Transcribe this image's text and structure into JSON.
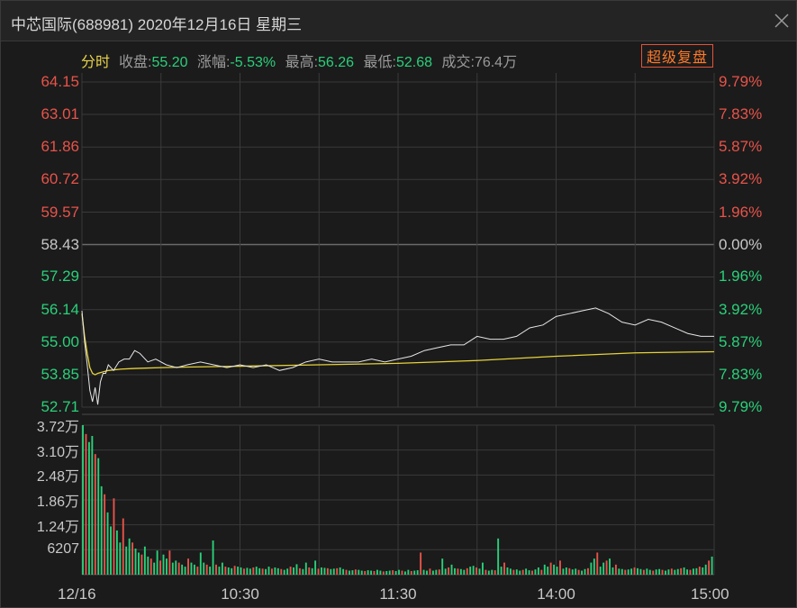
{
  "window": {
    "title": "中芯国际(688981) 2020年12月16日 星期三",
    "close_icon": "close-icon"
  },
  "info": {
    "mode": "分时",
    "close_label": "收盘:",
    "close_value": "55.20",
    "change_label": "涨幅:",
    "change_value": "-5.53%",
    "high_label": "最高:",
    "high_value": "56.26",
    "low_label": "最低:",
    "low_value": "52.68",
    "volume_label": "成交:",
    "volume_value": "76.4万"
  },
  "replay_button": "超级复盘",
  "colors": {
    "up": "#e8534a",
    "down": "#2ad07a",
    "flat": "#c8c8c8",
    "price_line": "#e6e6e6",
    "avg_line": "#e6d23a",
    "grid": "#3a3a3a"
  },
  "chart_data": {
    "type": "line",
    "symbol": "688981",
    "prev_close": 58.43,
    "price_axis": {
      "labels": [
        "64.15",
        "63.01",
        "61.86",
        "60.72",
        "59.57",
        "58.43",
        "57.29",
        "56.14",
        "55.00",
        "53.85",
        "52.71"
      ],
      "values": [
        64.15,
        63.01,
        61.86,
        60.72,
        59.57,
        58.43,
        57.29,
        56.14,
        55.0,
        53.85,
        52.71
      ],
      "ylim": [
        52.71,
        64.15
      ]
    },
    "pct_axis": {
      "labels": [
        "9.79%",
        "7.83%",
        "5.87%",
        "3.92%",
        "1.96%",
        "0.00%",
        "1.96%",
        "3.92%",
        "5.87%",
        "7.83%",
        "9.79%"
      ]
    },
    "volume_axis": {
      "labels": [
        "3.72万",
        "3.10万",
        "2.48万",
        "1.86万",
        "1.24万",
        "6207"
      ],
      "values": [
        37200,
        31000,
        24800,
        18600,
        12400,
        6207
      ],
      "ylim": [
        0,
        37200
      ]
    },
    "time_axis": {
      "labels": [
        "12/16",
        "10:30",
        "11:30",
        "14:00",
        "15:00"
      ],
      "minutes": [
        0,
        60,
        120,
        180,
        240
      ]
    },
    "grid": true,
    "price_series": {
      "name": "price",
      "minutes": [
        0,
        1,
        2,
        3,
        4,
        5,
        6,
        7,
        8,
        9,
        10,
        12,
        14,
        16,
        18,
        20,
        22,
        25,
        28,
        32,
        36,
        40,
        45,
        50,
        55,
        60,
        65,
        70,
        75,
        80,
        85,
        90,
        95,
        100,
        105,
        110,
        115,
        120,
        125,
        130,
        135,
        140,
        145,
        150,
        155,
        160,
        165,
        170,
        175,
        180,
        185,
        190,
        195,
        200,
        205,
        210,
        215,
        220,
        225,
        230,
        235,
        240
      ],
      "values": [
        56.1,
        55.0,
        54.2,
        53.3,
        52.9,
        53.4,
        52.8,
        53.6,
        53.9,
        53.9,
        54.2,
        54.0,
        54.3,
        54.4,
        54.4,
        54.7,
        54.6,
        54.3,
        54.4,
        54.2,
        54.1,
        54.2,
        54.3,
        54.2,
        54.1,
        54.2,
        54.1,
        54.2,
        54.0,
        54.1,
        54.3,
        54.4,
        54.3,
        54.3,
        54.3,
        54.4,
        54.3,
        54.4,
        54.5,
        54.7,
        54.8,
        54.9,
        54.9,
        55.2,
        55.1,
        55.1,
        55.2,
        55.5,
        55.6,
        55.9,
        56.0,
        56.1,
        56.2,
        56.0,
        55.7,
        55.6,
        55.8,
        55.7,
        55.5,
        55.3,
        55.2,
        55.2
      ]
    },
    "avg_series": {
      "name": "avg",
      "minutes": [
        0,
        1,
        2,
        3,
        4,
        5,
        6,
        8,
        10,
        15,
        20,
        30,
        40,
        60,
        90,
        120,
        150,
        180,
        210,
        240
      ],
      "values": [
        56.0,
        55.2,
        54.6,
        54.1,
        53.9,
        53.85,
        53.9,
        53.95,
        54.0,
        54.05,
        54.07,
        54.1,
        54.12,
        54.15,
        54.2,
        54.25,
        54.35,
        54.5,
        54.62,
        54.66
      ]
    },
    "volume_series": {
      "name": "volume",
      "description_free_values": true,
      "values": [
        37200,
        35000,
        33000,
        34500,
        30000,
        29000,
        22000,
        20000,
        15500,
        12000,
        19000,
        11000,
        8000,
        14000,
        7000,
        9000,
        8000,
        6500,
        5500,
        5000,
        7000,
        4500,
        4000,
        3000,
        6000,
        3500,
        5000,
        4000,
        6000,
        3000,
        3500,
        3000,
        2500,
        2000,
        4000,
        3000,
        2500,
        2000,
        5500,
        3000,
        2500,
        2000,
        8500,
        2500,
        2000,
        3000,
        2000,
        1800,
        1600,
        2200,
        2000,
        1800,
        1500,
        1700,
        1500,
        1800,
        2000,
        1600,
        1500,
        1400,
        2000,
        1500,
        1800,
        1600,
        1400,
        1200,
        1500,
        2000,
        1800,
        2600,
        1600,
        1400,
        3000,
        1800,
        1600,
        3500,
        1500,
        1800,
        1700,
        1600,
        1400,
        1500,
        1600,
        1800,
        1400,
        1200,
        1000,
        1100,
        1300,
        1200,
        1000,
        900,
        1100,
        1000,
        900,
        1200,
        1000,
        800,
        900,
        1000,
        1100,
        900,
        1200,
        1000,
        800,
        1200,
        900,
        1000,
        1100,
        5500,
        1200,
        1000,
        1500,
        1000,
        1200,
        1300,
        4000,
        1500,
        1800,
        2500,
        1600,
        1500,
        1400,
        1200,
        1600,
        2000,
        2200,
        1800,
        1500,
        3000,
        1200,
        1000,
        1200,
        1100,
        9000,
        2000,
        3000,
        1800,
        1500,
        1200,
        1300,
        1000,
        1200,
        1500,
        1100,
        1000,
        1300,
        1800,
        1200,
        2500,
        2000,
        3000,
        2500,
        2000,
        3500,
        1500,
        1800,
        1600,
        1300,
        1500,
        1200,
        1000,
        1400,
        1600,
        3000,
        4000,
        5500,
        2000,
        3000,
        3500,
        4000,
        1800,
        2500,
        1500,
        1400,
        1200,
        1300,
        1500,
        1800,
        1600,
        1400,
        1200,
        1500,
        1200,
        1000,
        1300,
        1400,
        1200,
        1000,
        1300,
        1500,
        1200,
        1400,
        1600,
        1800,
        1300,
        1200,
        1500,
        1600,
        2000,
        1800,
        2500,
        3500,
        4500
      ]
    }
  }
}
